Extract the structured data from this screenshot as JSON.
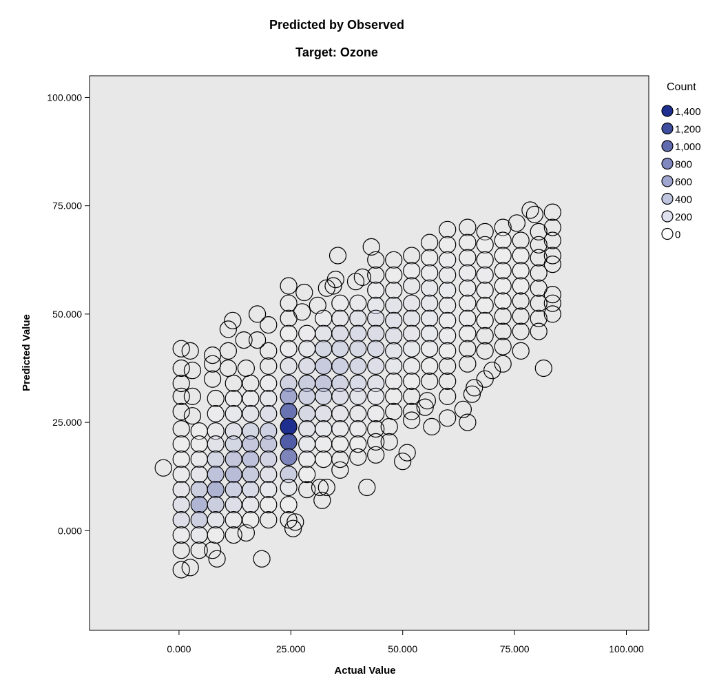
{
  "chart_data": {
    "type": "scatter",
    "title": "Predicted by Observed",
    "subtitle": "Target: Ozone",
    "xlabel": "Actual Value",
    "ylabel": "Predicted Value",
    "xlim": [
      -20,
      105
    ],
    "ylim": [
      -23,
      105
    ],
    "xticks": [
      "0.000",
      "25.000",
      "50.000",
      "75.000",
      "100.000"
    ],
    "yticks": [
      "0.000",
      "25.000",
      "50.000",
      "75.000",
      "100.000"
    ],
    "x_tick_values": [
      0,
      25,
      50,
      75,
      100
    ],
    "y_tick_values": [
      0,
      25,
      50,
      75,
      100
    ],
    "grid": false,
    "background": "#e8e8e8",
    "point_color_scale": {
      "min_color": "#ffffff",
      "max_color": "#1f2f8f",
      "max_count": 1400
    },
    "legend": {
      "title": "Count",
      "placement": "right",
      "items": [
        {
          "label": "1,400",
          "count": 1400
        },
        {
          "label": "1,200",
          "count": 1200
        },
        {
          "label": "1,000",
          "count": 1000
        },
        {
          "label": "800",
          "count": 800
        },
        {
          "label": "600",
          "count": 600
        },
        {
          "label": "400",
          "count": 400
        },
        {
          "label": "200",
          "count": 200
        },
        {
          "label": "0",
          "count": 0
        }
      ]
    },
    "x_bins": [
      0.5,
      4.5,
      8.2,
      12.2,
      16,
      20,
      25,
      28.6,
      32.3,
      36,
      40,
      44,
      48,
      52,
      56,
      60,
      64.5,
      68.4,
      72.4,
      76.4,
      80.4,
      83.5
    ],
    "points": [
      [
        -3.5,
        14.5,
        0
      ],
      [
        0.5,
        42,
        0
      ],
      [
        0.5,
        37.5,
        0
      ],
      [
        0.5,
        34,
        0
      ],
      [
        0.5,
        31,
        0
      ],
      [
        0.5,
        27.5,
        0
      ],
      [
        0.5,
        23.5,
        0
      ],
      [
        0.5,
        20,
        20
      ],
      [
        0.5,
        16.5,
        30
      ],
      [
        0.5,
        13,
        100
      ],
      [
        0.5,
        9.5,
        200
      ],
      [
        0.5,
        6,
        280
      ],
      [
        0.5,
        2.5,
        320
      ],
      [
        0.5,
        -1,
        80
      ],
      [
        0.5,
        -4.5,
        0
      ],
      [
        0.5,
        -9,
        0
      ],
      [
        2.5,
        41.5,
        0
      ],
      [
        2.5,
        -8.5,
        0
      ],
      [
        3,
        37,
        0
      ],
      [
        3,
        31,
        0
      ],
      [
        3,
        26.5,
        0
      ],
      [
        4.5,
        23,
        30
      ],
      [
        4.5,
        20,
        50
      ],
      [
        4.5,
        16.5,
        120
      ],
      [
        4.5,
        13,
        200
      ],
      [
        4.5,
        9.5,
        500
      ],
      [
        4.5,
        6,
        700
      ],
      [
        4.5,
        2.5,
        480
      ],
      [
        4.5,
        -1,
        150
      ],
      [
        4.5,
        -4.5,
        0
      ],
      [
        7.5,
        40.5,
        0
      ],
      [
        7.5,
        38.5,
        0
      ],
      [
        7.5,
        35,
        0
      ],
      [
        7.5,
        -4.5,
        0
      ],
      [
        8.2,
        30.5,
        0
      ],
      [
        8.2,
        27,
        60
      ],
      [
        8.2,
        23,
        120
      ],
      [
        8.2,
        20,
        250
      ],
      [
        8.2,
        16.5,
        420
      ],
      [
        8.2,
        13,
        600
      ],
      [
        8.2,
        9.5,
        720
      ],
      [
        8.2,
        6,
        500
      ],
      [
        8.2,
        2.5,
        220
      ],
      [
        8.2,
        -1,
        40
      ],
      [
        8.5,
        -6.5,
        0
      ],
      [
        11,
        41.5,
        0
      ],
      [
        11,
        46.5,
        0
      ],
      [
        11,
        37.5,
        0
      ],
      [
        12,
        48.5,
        0
      ],
      [
        12.2,
        34,
        0
      ],
      [
        12.2,
        30.5,
        60
      ],
      [
        12.2,
        27,
        150
      ],
      [
        12.2,
        23,
        260
      ],
      [
        12.2,
        20,
        420
      ],
      [
        12.2,
        16.5,
        560
      ],
      [
        12.2,
        13,
        650
      ],
      [
        12.2,
        9.5,
        480
      ],
      [
        12.2,
        6,
        300
      ],
      [
        12.2,
        2.5,
        120
      ],
      [
        12.2,
        -1,
        0
      ],
      [
        14.5,
        44,
        0
      ],
      [
        15,
        37.5,
        0
      ],
      [
        15,
        -0.5,
        0
      ],
      [
        16,
        34,
        0
      ],
      [
        16,
        30.5,
        100
      ],
      [
        16,
        27,
        250
      ],
      [
        16,
        23,
        420
      ],
      [
        16,
        20,
        550
      ],
      [
        16,
        16.5,
        600
      ],
      [
        16,
        13,
        520
      ],
      [
        16,
        9.5,
        360
      ],
      [
        16,
        6,
        200
      ],
      [
        16,
        2.5,
        50
      ],
      [
        17.5,
        50,
        0
      ],
      [
        17.5,
        44,
        0
      ],
      [
        18.5,
        -6.5,
        0
      ],
      [
        20,
        47.5,
        0
      ],
      [
        20,
        41.5,
        0
      ],
      [
        20,
        38,
        0
      ],
      [
        20,
        34,
        60
      ],
      [
        20,
        30.5,
        180
      ],
      [
        20,
        27,
        320
      ],
      [
        20,
        23,
        460
      ],
      [
        20,
        20,
        560
      ],
      [
        20,
        16.5,
        430
      ],
      [
        20,
        13,
        280
      ],
      [
        20,
        9.5,
        150
      ],
      [
        20,
        6,
        50
      ],
      [
        20,
        2.5,
        0
      ],
      [
        24.5,
        56.5,
        0
      ],
      [
        24.5,
        52.5,
        0
      ],
      [
        24.5,
        49,
        0
      ],
      [
        24.5,
        45.5,
        20
      ],
      [
        24.5,
        42,
        80
      ],
      [
        24.5,
        38,
        250
      ],
      [
        24.5,
        34,
        450
      ],
      [
        24.5,
        31,
        800
      ],
      [
        24.5,
        27.5,
        1100
      ],
      [
        24.5,
        24,
        1400
      ],
      [
        24.5,
        20.5,
        1200
      ],
      [
        24.5,
        17,
        1000
      ],
      [
        24.5,
        13,
        500
      ],
      [
        24.5,
        10,
        150
      ],
      [
        24.5,
        6,
        30
      ],
      [
        24.5,
        2.5,
        0
      ],
      [
        25.5,
        0.5,
        0
      ],
      [
        26,
        2,
        0
      ],
      [
        27.5,
        50.5,
        0
      ],
      [
        28,
        55,
        0
      ],
      [
        28.6,
        45.5,
        60
      ],
      [
        28.6,
        42,
        180
      ],
      [
        28.6,
        38,
        340
      ],
      [
        28.6,
        34,
        500
      ],
      [
        28.6,
        31,
        460
      ],
      [
        28.6,
        27,
        380
      ],
      [
        28.6,
        23.5,
        250
      ],
      [
        28.6,
        20,
        150
      ],
      [
        28.6,
        16.5,
        60
      ],
      [
        28.6,
        13,
        20
      ],
      [
        28.6,
        9.5,
        0
      ],
      [
        31,
        52,
        0
      ],
      [
        31.5,
        10,
        0
      ],
      [
        32,
        7,
        0
      ],
      [
        33,
        10,
        0
      ],
      [
        32.3,
        49,
        60
      ],
      [
        32.3,
        45.5,
        220
      ],
      [
        32.3,
        42,
        420
      ],
      [
        32.3,
        38,
        520
      ],
      [
        32.3,
        34,
        560
      ],
      [
        32.3,
        31,
        400
      ],
      [
        32.3,
        27,
        280
      ],
      [
        32.3,
        23.5,
        160
      ],
      [
        32.3,
        20,
        80
      ],
      [
        32.3,
        16.5,
        20
      ],
      [
        33,
        56,
        0
      ],
      [
        34.5,
        56.5,
        0
      ],
      [
        35,
        58,
        0
      ],
      [
        35.5,
        63.5,
        0
      ],
      [
        36,
        52.5,
        80
      ],
      [
        36,
        49,
        200
      ],
      [
        36,
        45.5,
        340
      ],
      [
        36,
        42,
        420
      ],
      [
        36,
        38,
        480
      ],
      [
        36,
        34,
        440
      ],
      [
        36,
        31,
        320
      ],
      [
        36,
        27,
        200
      ],
      [
        36,
        23.5,
        120
      ],
      [
        36,
        20,
        40
      ],
      [
        36,
        16.5,
        0
      ],
      [
        36,
        14,
        0
      ],
      [
        39.5,
        57.5,
        0
      ],
      [
        41,
        58.5,
        0
      ],
      [
        42,
        10,
        0
      ],
      [
        43,
        65.5,
        0
      ],
      [
        40,
        52.5,
        120
      ],
      [
        40,
        49,
        250
      ],
      [
        40,
        45.5,
        350
      ],
      [
        40,
        42,
        380
      ],
      [
        40,
        38,
        400
      ],
      [
        40,
        34,
        350
      ],
      [
        40,
        31,
        240
      ],
      [
        40,
        27,
        140
      ],
      [
        40,
        23.5,
        60
      ],
      [
        40,
        20,
        20
      ],
      [
        40,
        17,
        0
      ],
      [
        44,
        62.5,
        0
      ],
      [
        44,
        59,
        0
      ],
      [
        44,
        55.5,
        60
      ],
      [
        44,
        52,
        180
      ],
      [
        44,
        49,
        280
      ],
      [
        44,
        45.5,
        340
      ],
      [
        44,
        42,
        360
      ],
      [
        44,
        38,
        320
      ],
      [
        44,
        34,
        260
      ],
      [
        44,
        31,
        150
      ],
      [
        44,
        27,
        60
      ],
      [
        44,
        23.5,
        0
      ],
      [
        44,
        20.5,
        0
      ],
      [
        44,
        17.5,
        0
      ],
      [
        47,
        20.5,
        0
      ],
      [
        47,
        24,
        0
      ],
      [
        48,
        62.5,
        0
      ],
      [
        48,
        59,
        40
      ],
      [
        48,
        55.5,
        140
      ],
      [
        48,
        52,
        220
      ],
      [
        48,
        48.5,
        260
      ],
      [
        48,
        45,
        280
      ],
      [
        48,
        41.5,
        240
      ],
      [
        48,
        38,
        180
      ],
      [
        48,
        34.5,
        100
      ],
      [
        48,
        31,
        40
      ],
      [
        48,
        27.5,
        0
      ],
      [
        50,
        16,
        0
      ],
      [
        51,
        18,
        0
      ],
      [
        52,
        63.5,
        0
      ],
      [
        52,
        60,
        60
      ],
      [
        52,
        56.5,
        140
      ],
      [
        52,
        52.5,
        200
      ],
      [
        52,
        49,
        220
      ],
      [
        52,
        45.5,
        200
      ],
      [
        52,
        42,
        160
      ],
      [
        52,
        38,
        100
      ],
      [
        52,
        34.5,
        40
      ],
      [
        52,
        31,
        0
      ],
      [
        52,
        27.5,
        0
      ],
      [
        52,
        25.5,
        0
      ],
      [
        55,
        28.5,
        0
      ],
      [
        55.5,
        30,
        0
      ],
      [
        56.5,
        24,
        0
      ],
      [
        56,
        66.5,
        0
      ],
      [
        56,
        63,
        40
      ],
      [
        56,
        59.5,
        100
      ],
      [
        56,
        56,
        160
      ],
      [
        56,
        52.5,
        180
      ],
      [
        56,
        49,
        160
      ],
      [
        56,
        45.5,
        130
      ],
      [
        56,
        42,
        80
      ],
      [
        56,
        38,
        40
      ],
      [
        56,
        34.5,
        0
      ],
      [
        60,
        69.5,
        0
      ],
      [
        60,
        66,
        40
      ],
      [
        60,
        62.5,
        80
      ],
      [
        60,
        59,
        120
      ],
      [
        60,
        55.5,
        130
      ],
      [
        60,
        52,
        120
      ],
      [
        60,
        48.5,
        90
      ],
      [
        60,
        45,
        60
      ],
      [
        60,
        41.5,
        20
      ],
      [
        60,
        38,
        0
      ],
      [
        60,
        34.5,
        0
      ],
      [
        60,
        31,
        0
      ],
      [
        60,
        26,
        0
      ],
      [
        63.5,
        28,
        0
      ],
      [
        64.5,
        25,
        0
      ],
      [
        65.5,
        31.5,
        0
      ],
      [
        66,
        33,
        0
      ],
      [
        64.5,
        70,
        0
      ],
      [
        64.5,
        66.5,
        40
      ],
      [
        64.5,
        63,
        70
      ],
      [
        64.5,
        59.5,
        90
      ],
      [
        64.5,
        56,
        100
      ],
      [
        64.5,
        52.5,
        90
      ],
      [
        64.5,
        49,
        60
      ],
      [
        64.5,
        45.5,
        40
      ],
      [
        64.5,
        42,
        0
      ],
      [
        64.5,
        38.5,
        0
      ],
      [
        68.4,
        69,
        0
      ],
      [
        68.4,
        66,
        20
      ],
      [
        68.4,
        62.5,
        40
      ],
      [
        68.4,
        59,
        60
      ],
      [
        68.4,
        55.5,
        60
      ],
      [
        68.4,
        52,
        40
      ],
      [
        68.4,
        48.5,
        20
      ],
      [
        68.4,
        45,
        0
      ],
      [
        68.4,
        41.5,
        0
      ],
      [
        68.4,
        35,
        0
      ],
      [
        70,
        37,
        0
      ],
      [
        72.4,
        70,
        0
      ],
      [
        72.4,
        67,
        20
      ],
      [
        72.4,
        63.5,
        30
      ],
      [
        72.4,
        60,
        40
      ],
      [
        72.4,
        56.5,
        30
      ],
      [
        72.4,
        53,
        20
      ],
      [
        72.4,
        49.5,
        0
      ],
      [
        72.4,
        46,
        0
      ],
      [
        72.4,
        42.5,
        0
      ],
      [
        72.4,
        38.5,
        0
      ],
      [
        75.5,
        71,
        0
      ],
      [
        76.4,
        67,
        0
      ],
      [
        76.4,
        63.5,
        20
      ],
      [
        76.4,
        60,
        20
      ],
      [
        76.4,
        56.5,
        20
      ],
      [
        76.4,
        53,
        0
      ],
      [
        76.4,
        49.5,
        0
      ],
      [
        76.4,
        46,
        0
      ],
      [
        76.4,
        41.5,
        0
      ],
      [
        78.5,
        74,
        0
      ],
      [
        79.5,
        73,
        0
      ],
      [
        80.4,
        69,
        0
      ],
      [
        80.4,
        66,
        0
      ],
      [
        80.4,
        63,
        0
      ],
      [
        80.4,
        59.5,
        0
      ],
      [
        80.4,
        56,
        0
      ],
      [
        80.4,
        52.5,
        0
      ],
      [
        80.4,
        49,
        0
      ],
      [
        80.4,
        46,
        0
      ],
      [
        81.5,
        37.5,
        0
      ],
      [
        83.5,
        73.5,
        0
      ],
      [
        83.5,
        70,
        0
      ],
      [
        83.5,
        67,
        0
      ],
      [
        83.5,
        63.5,
        0
      ],
      [
        83.5,
        61.5,
        0
      ],
      [
        83.5,
        54.5,
        0
      ],
      [
        83.5,
        52.5,
        0
      ],
      [
        83.5,
        50,
        0
      ]
    ]
  }
}
